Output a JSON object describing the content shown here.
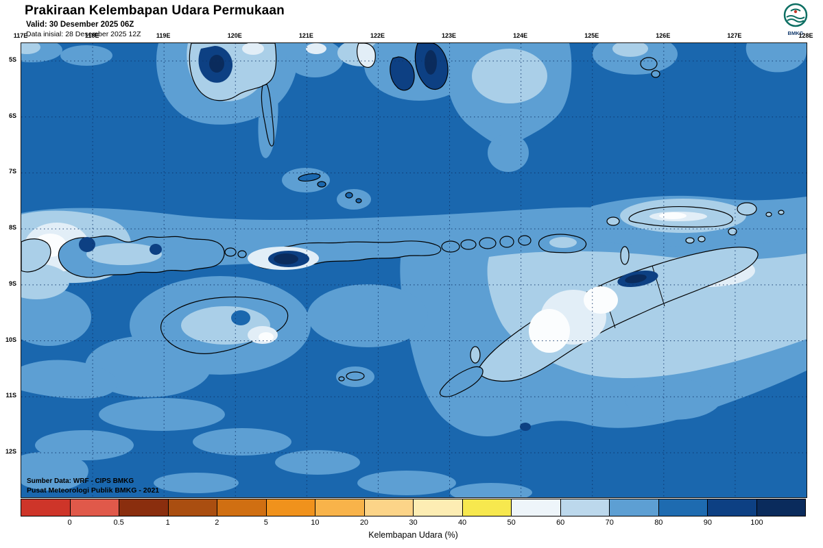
{
  "header": {
    "title": "Prakiraan Kelembapan Udara Permukaan",
    "valid": "Valid: 30 Desember 2025 06Z",
    "init": "Data inisial: 28 Desember 2025 12Z",
    "logo_text": "BMKG"
  },
  "map": {
    "lon_labels": [
      "117E",
      "118E",
      "119E",
      "120E",
      "121E",
      "122E",
      "123E",
      "124E",
      "125E",
      "126E",
      "127E",
      "128E"
    ],
    "lat_labels": [
      "5S",
      "6S",
      "7S",
      "8S",
      "9S",
      "10S",
      "11S",
      "12S"
    ],
    "source_line1": "Sumber Data: WRF - CIPS BMKG",
    "source_line2": "Pusat Meteorologi Publik BMKG -  2021"
  },
  "legend": {
    "caption": "Kelembapan Udara (%)",
    "labels": [
      "0",
      "0.5",
      "1",
      "2",
      "5",
      "10",
      "20",
      "30",
      "40",
      "50",
      "60",
      "70",
      "80",
      "90",
      "100"
    ],
    "colors": [
      "#ce3529",
      "#e0594a",
      "#8a2e0e",
      "#aa4e10",
      "#d06f12",
      "#f0921c",
      "#f8b34a",
      "#fcd488",
      "#fdedb3",
      "#f7e84e",
      "#eef5fa",
      "#bcd8ec",
      "#5d9fd3",
      "#1e6bb0",
      "#0d4083",
      "#0a2b5c"
    ]
  },
  "palette": {
    "base": "#1a67ae",
    "light1": "#5d9fd3",
    "light2": "#aacfe8",
    "light3": "#e2eef7",
    "white": "#fbfdfe",
    "dark1": "#0d4083",
    "dark2": "#0a2b5c",
    "grid": "#0b3166",
    "logo_teal": "#0c6e62"
  }
}
